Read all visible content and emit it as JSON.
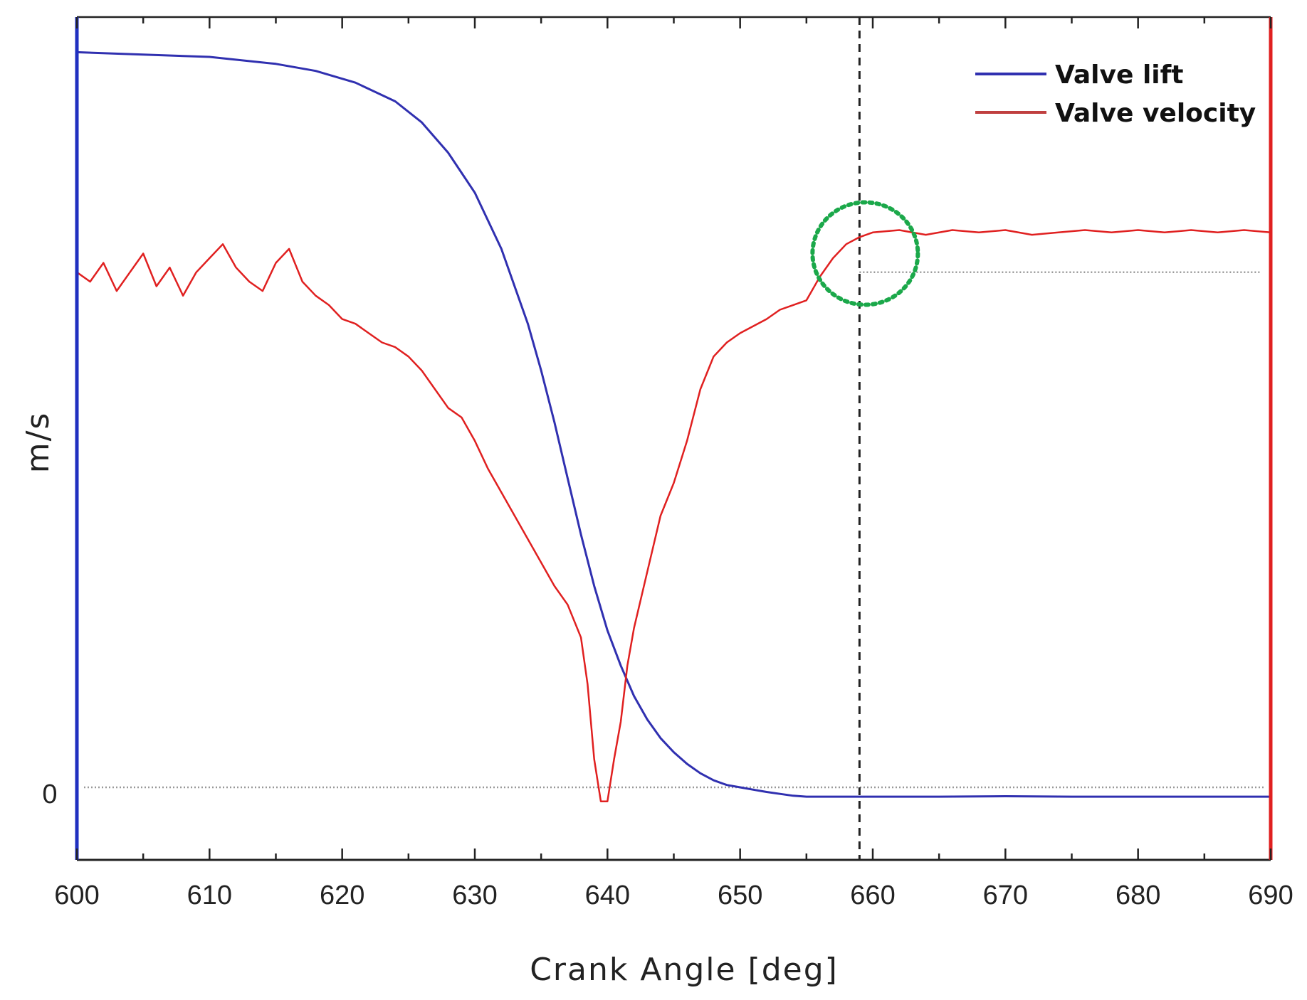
{
  "chart_data": {
    "type": "line",
    "title": "",
    "xlabel": "Crank Angle [deg]",
    "ylabel": "m/s",
    "xlim": [
      600,
      690
    ],
    "xticks": [
      "600",
      "610",
      "620",
      "630",
      "640",
      "650",
      "660",
      "670",
      "680",
      "690"
    ],
    "yticks": [
      {
        "label": "0",
        "value": 0
      }
    ],
    "ylim": [
      -1.55,
      16.45
    ],
    "grid": false,
    "legend_position": "top-right",
    "colors": {
      "valve_lift": "#3030b0",
      "valve_velocity": "#e02020",
      "left_axis": "#2030c0",
      "right_axis": "#e02020",
      "marker_circle": "#1ba84a",
      "reference_line": "#999999"
    },
    "series": [
      {
        "name": "Valve lift",
        "x": [
          600,
          605,
          610,
          615,
          618,
          621,
          624,
          626,
          628,
          630,
          632,
          634,
          635,
          636,
          637,
          638,
          639,
          640,
          641,
          642,
          643,
          644,
          645,
          646,
          647,
          648,
          649,
          650,
          651,
          652,
          653,
          654,
          655,
          656,
          657,
          658,
          659,
          660,
          665,
          670,
          675,
          680,
          685,
          690
        ],
        "y": [
          15.7,
          15.65,
          15.6,
          15.45,
          15.3,
          15.05,
          14.65,
          14.2,
          13.55,
          12.7,
          11.5,
          9.9,
          8.9,
          7.8,
          6.6,
          5.4,
          4.3,
          3.35,
          2.6,
          1.95,
          1.45,
          1.05,
          0.75,
          0.5,
          0.3,
          0.15,
          0.05,
          0.0,
          -0.05,
          -0.1,
          -0.14,
          -0.18,
          -0.2,
          -0.2,
          -0.2,
          -0.2,
          -0.2,
          -0.2,
          -0.2,
          -0.19,
          -0.2,
          -0.2,
          -0.2,
          -0.2
        ]
      },
      {
        "name": "Valve velocity",
        "x": [
          600,
          601,
          602,
          603,
          604,
          605,
          606,
          607,
          608,
          609,
          610,
          611,
          612,
          613,
          614,
          615,
          616,
          617,
          618,
          619,
          620,
          621,
          622,
          623,
          624,
          625,
          626,
          627,
          628,
          629,
          630,
          631,
          632,
          633,
          634,
          635,
          636,
          637,
          638,
          638.5,
          639,
          639.5,
          640,
          640.5,
          641,
          641.5,
          642,
          643,
          644,
          645,
          646,
          647,
          648,
          649,
          650,
          651,
          652,
          653,
          654,
          655,
          656,
          657,
          658,
          659,
          660,
          662,
          664,
          666,
          668,
          670,
          672,
          674,
          676,
          678,
          680,
          682,
          684,
          686,
          688,
          690
        ],
        "y": [
          11.0,
          10.8,
          11.2,
          10.6,
          11.0,
          11.4,
          10.7,
          11.1,
          10.5,
          11.0,
          11.3,
          11.6,
          11.1,
          10.8,
          10.6,
          11.2,
          11.5,
          10.8,
          10.5,
          10.3,
          10.0,
          9.9,
          9.7,
          9.5,
          9.4,
          9.2,
          8.9,
          8.5,
          8.1,
          7.9,
          7.4,
          6.8,
          6.3,
          5.8,
          5.3,
          4.8,
          4.3,
          3.9,
          3.2,
          2.2,
          0.6,
          -0.3,
          -0.3,
          0.6,
          1.4,
          2.6,
          3.4,
          4.6,
          5.8,
          6.5,
          7.4,
          8.5,
          9.2,
          9.5,
          9.7,
          9.85,
          10.0,
          10.2,
          10.3,
          10.4,
          10.9,
          11.3,
          11.6,
          11.75,
          11.85,
          11.9,
          11.8,
          11.9,
          11.85,
          11.9,
          11.8,
          11.85,
          11.9,
          11.85,
          11.9,
          11.85,
          11.9,
          11.85,
          11.9,
          11.85
        ]
      }
    ],
    "reference_lines": [
      {
        "axis": "y",
        "value": 0,
        "style": "dotted"
      },
      {
        "axis": "y",
        "value": 11.0,
        "from_x": 659,
        "to_x": 690,
        "style": "dotted"
      },
      {
        "axis": "x",
        "value": 659,
        "style": "dashed"
      }
    ],
    "annotations": [
      {
        "type": "dotted-circle",
        "x": 659,
        "y": 11.4
      }
    ]
  }
}
